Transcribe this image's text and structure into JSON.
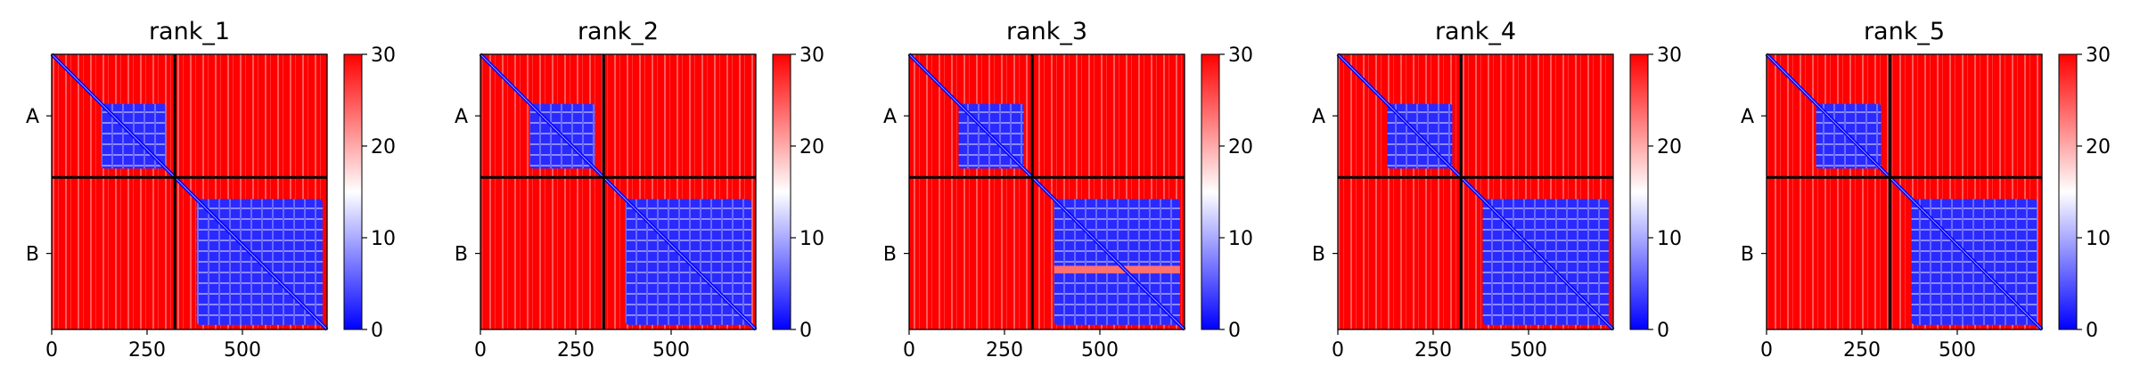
{
  "colors": {
    "low": "#0000ff",
    "mid": "#ffffff",
    "high": "#ff0000",
    "divider": "#000000"
  },
  "chart_data": [
    {
      "type": "heatmap",
      "title": "rank_1",
      "chains": [
        "A",
        "B"
      ],
      "chain_lengths": [
        323,
        399
      ],
      "x_ticks": [
        0,
        250,
        500
      ],
      "x_tick_labels": [
        "0",
        "250",
        "500"
      ],
      "colorbar": {
        "range": [
          0,
          30
        ],
        "ticks": [
          0,
          10,
          20,
          30
        ],
        "tick_labels": [
          "0",
          "10",
          "20",
          "30"
        ],
        "colormap": "bwr"
      },
      "domain_A": [
        130,
        300
      ],
      "domain_B": [
        380,
        710
      ],
      "gaps_B": []
    },
    {
      "type": "heatmap",
      "title": "rank_2",
      "chains": [
        "A",
        "B"
      ],
      "chain_lengths": [
        323,
        399
      ],
      "x_ticks": [
        0,
        250,
        500
      ],
      "x_tick_labels": [
        "0",
        "250",
        "500"
      ],
      "colorbar": {
        "range": [
          0,
          30
        ],
        "ticks": [
          0,
          10,
          20,
          30
        ],
        "tick_labels": [
          "0",
          "10",
          "20",
          "30"
        ],
        "colormap": "bwr"
      },
      "domain_A": [
        130,
        300
      ],
      "domain_B": [
        380,
        710
      ],
      "gaps_B": []
    },
    {
      "type": "heatmap",
      "title": "rank_3",
      "chains": [
        "A",
        "B"
      ],
      "chain_lengths": [
        323,
        399
      ],
      "x_ticks": [
        0,
        250,
        500
      ],
      "x_tick_labels": [
        "0",
        "250",
        "500"
      ],
      "colorbar": {
        "range": [
          0,
          30
        ],
        "ticks": [
          0,
          10,
          20,
          30
        ],
        "tick_labels": [
          "0",
          "10",
          "20",
          "30"
        ],
        "colormap": "bwr"
      },
      "domain_A": [
        130,
        300
      ],
      "domain_B": [
        380,
        710
      ],
      "gaps_B": [
        [
          555,
          575
        ]
      ]
    },
    {
      "type": "heatmap",
      "title": "rank_4",
      "chains": [
        "A",
        "B"
      ],
      "chain_lengths": [
        323,
        399
      ],
      "x_ticks": [
        0,
        250,
        500
      ],
      "x_tick_labels": [
        "0",
        "250",
        "500"
      ],
      "colorbar": {
        "range": [
          0,
          30
        ],
        "ticks": [
          0,
          10,
          20,
          30
        ],
        "tick_labels": [
          "0",
          "10",
          "20",
          "30"
        ],
        "colormap": "bwr"
      },
      "domain_A": [
        130,
        300
      ],
      "domain_B": [
        380,
        710
      ],
      "gaps_B": []
    },
    {
      "type": "heatmap",
      "title": "rank_5",
      "chains": [
        "A",
        "B"
      ],
      "chain_lengths": [
        323,
        399
      ],
      "x_ticks": [
        0,
        250,
        500
      ],
      "x_tick_labels": [
        "0",
        "250",
        "500"
      ],
      "colorbar": {
        "range": [
          0,
          30
        ],
        "ticks": [
          0,
          10,
          20,
          30
        ],
        "tick_labels": [
          "0",
          "10",
          "20",
          "30"
        ],
        "colormap": "bwr"
      },
      "domain_A": [
        130,
        300
      ],
      "domain_B": [
        380,
        710
      ],
      "gaps_B": []
    }
  ]
}
